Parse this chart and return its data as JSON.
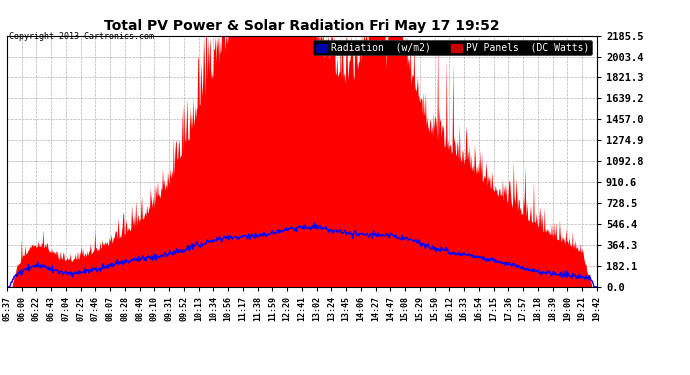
{
  "title": "Total PV Power & Solar Radiation Fri May 17 19:52",
  "copyright": "Copyright 2013 Cartronics.com",
  "background_color": "#ffffff",
  "plot_bg_color": "#ffffff",
  "grid_color": "#aaaaaa",
  "yticks": [
    0.0,
    182.1,
    364.3,
    546.4,
    728.5,
    910.6,
    1092.8,
    1274.9,
    1457.0,
    1639.2,
    1821.3,
    2003.4,
    2185.5
  ],
  "ymax": 2185.5,
  "ymin": 0.0,
  "pv_color": "#ff0000",
  "radiation_color": "#0000ff",
  "legend_radiation_bg": "#0000aa",
  "legend_pv_bg": "#cc0000",
  "xtick_labels": [
    "05:37",
    "06:00",
    "06:22",
    "06:43",
    "07:04",
    "07:25",
    "07:46",
    "08:07",
    "08:28",
    "08:49",
    "09:10",
    "09:31",
    "09:52",
    "10:13",
    "10:34",
    "10:56",
    "11:17",
    "11:38",
    "11:59",
    "12:20",
    "12:41",
    "13:02",
    "13:24",
    "13:45",
    "14:06",
    "14:27",
    "14:47",
    "15:08",
    "15:29",
    "15:50",
    "16:12",
    "16:33",
    "16:54",
    "17:15",
    "17:36",
    "17:57",
    "18:18",
    "18:39",
    "19:00",
    "19:21",
    "19:42"
  ]
}
